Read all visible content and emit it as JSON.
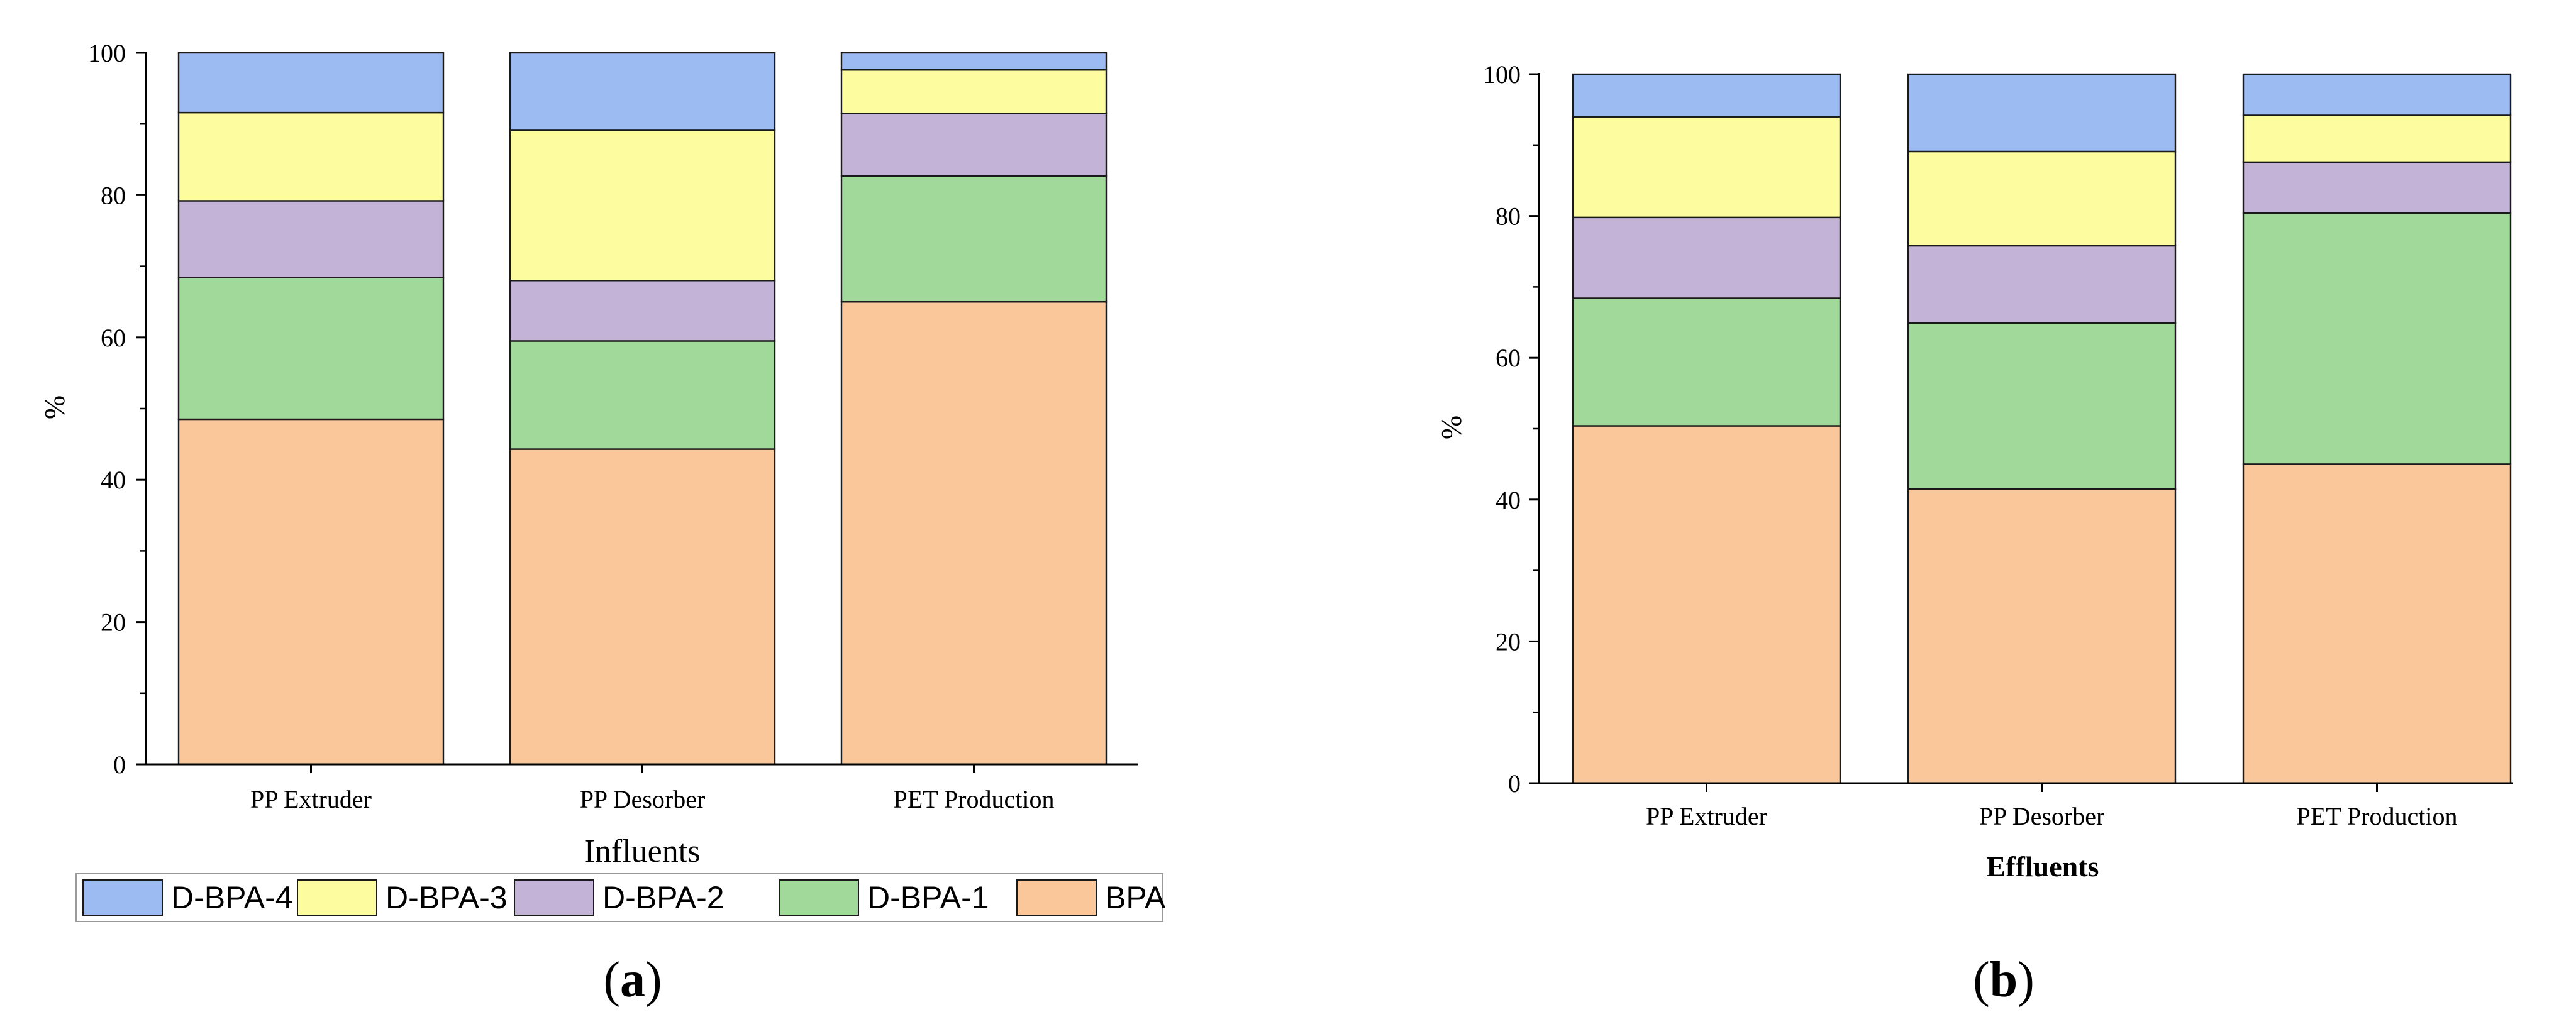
{
  "chart_data": [
    {
      "panel": "a",
      "type": "bar",
      "stacked": true,
      "xlabel": "Influents",
      "ylabel": "%",
      "ylim": [
        0,
        100
      ],
      "yticks": [
        0,
        20,
        40,
        60,
        80,
        100
      ],
      "grid": false,
      "categories": [
        "PP Extruder",
        "PP Desorber",
        "PET Production"
      ],
      "series": [
        {
          "name": "BPA",
          "color": "#F9C799",
          "values": [
            48.5,
            44.3,
            65.0
          ]
        },
        {
          "name": "D-BPA-1",
          "color": "#A1D99B",
          "values": [
            19.9,
            15.2,
            17.7
          ]
        },
        {
          "name": "D-BPA-2",
          "color": "#C2B3D7",
          "values": [
            10.8,
            8.5,
            8.8
          ]
        },
        {
          "name": "D-BPA-3",
          "color": "#FDFD9F",
          "values": [
            12.4,
            21.1,
            6.1
          ]
        },
        {
          "name": "D-BPA-4",
          "color": "#9DBBF3",
          "values": [
            8.4,
            10.9,
            2.4
          ]
        }
      ]
    },
    {
      "panel": "b",
      "type": "bar",
      "stacked": true,
      "xlabel": "Effluents",
      "ylabel": "%",
      "ylim": [
        0,
        100
      ],
      "yticks": [
        0,
        20,
        40,
        60,
        80,
        100
      ],
      "grid": false,
      "categories": [
        "PP Extruder",
        "PP Desorber",
        "PET Production"
      ],
      "series": [
        {
          "name": "BPA",
          "color": "#F9C799",
          "values": [
            50.4,
            41.5,
            45.0
          ]
        },
        {
          "name": "D-BPA-1",
          "color": "#A1D99B",
          "values": [
            18.0,
            23.4,
            35.4
          ]
        },
        {
          "name": "D-BPA-2",
          "color": "#C2B3D7",
          "values": [
            11.4,
            10.9,
            7.2
          ]
        },
        {
          "name": "D-BPA-3",
          "color": "#FDFD9F",
          "values": [
            14.2,
            13.3,
            6.6
          ]
        },
        {
          "name": "D-BPA-4",
          "color": "#9DBBF3",
          "values": [
            6.0,
            10.9,
            5.8
          ]
        }
      ]
    }
  ],
  "legend": {
    "placement": "bottom",
    "items": [
      {
        "label": "D-BPA-4",
        "color": "#9DBBF3"
      },
      {
        "label": "D-BPA-3",
        "color": "#FDFD9F"
      },
      {
        "label": "D-BPA-2",
        "color": "#C2B3D7"
      },
      {
        "label": "D-BPA-1",
        "color": "#A1D99B"
      },
      {
        "label": "BPA",
        "color": "#F9C799"
      }
    ]
  },
  "panel_labels": {
    "a": {
      "open": "(",
      "letter": "a",
      "close": ")"
    },
    "b": {
      "open": "(",
      "letter": "b",
      "close": ")"
    }
  }
}
